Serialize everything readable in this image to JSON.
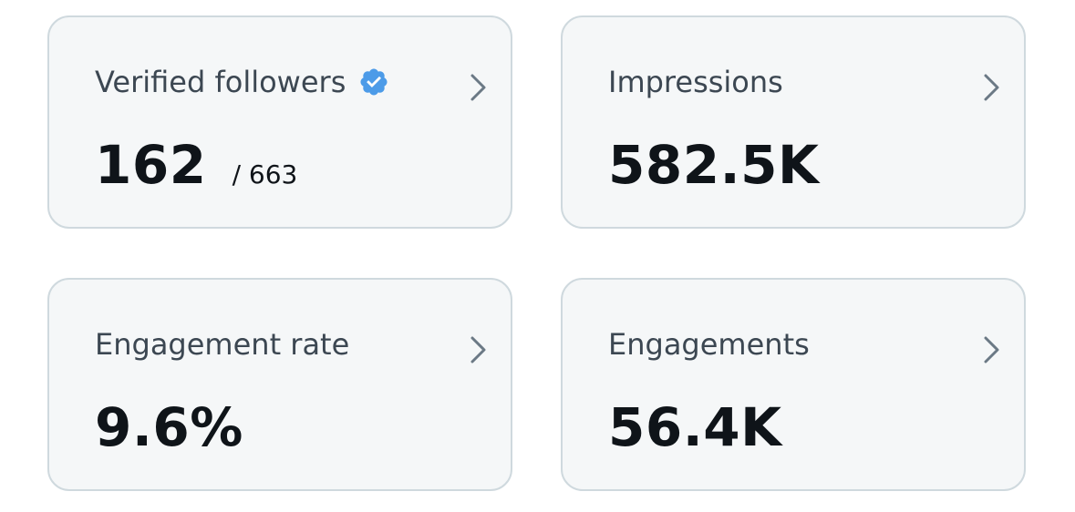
{
  "cards": [
    {
      "label": "Verified followers",
      "value": "162",
      "total": "/ 663",
      "verified": true
    },
    {
      "label": "Impressions",
      "value": "582.5K"
    },
    {
      "label": "Engagement rate",
      "value": "9.6%"
    },
    {
      "label": "Engagements",
      "value": "56.4K"
    }
  ]
}
